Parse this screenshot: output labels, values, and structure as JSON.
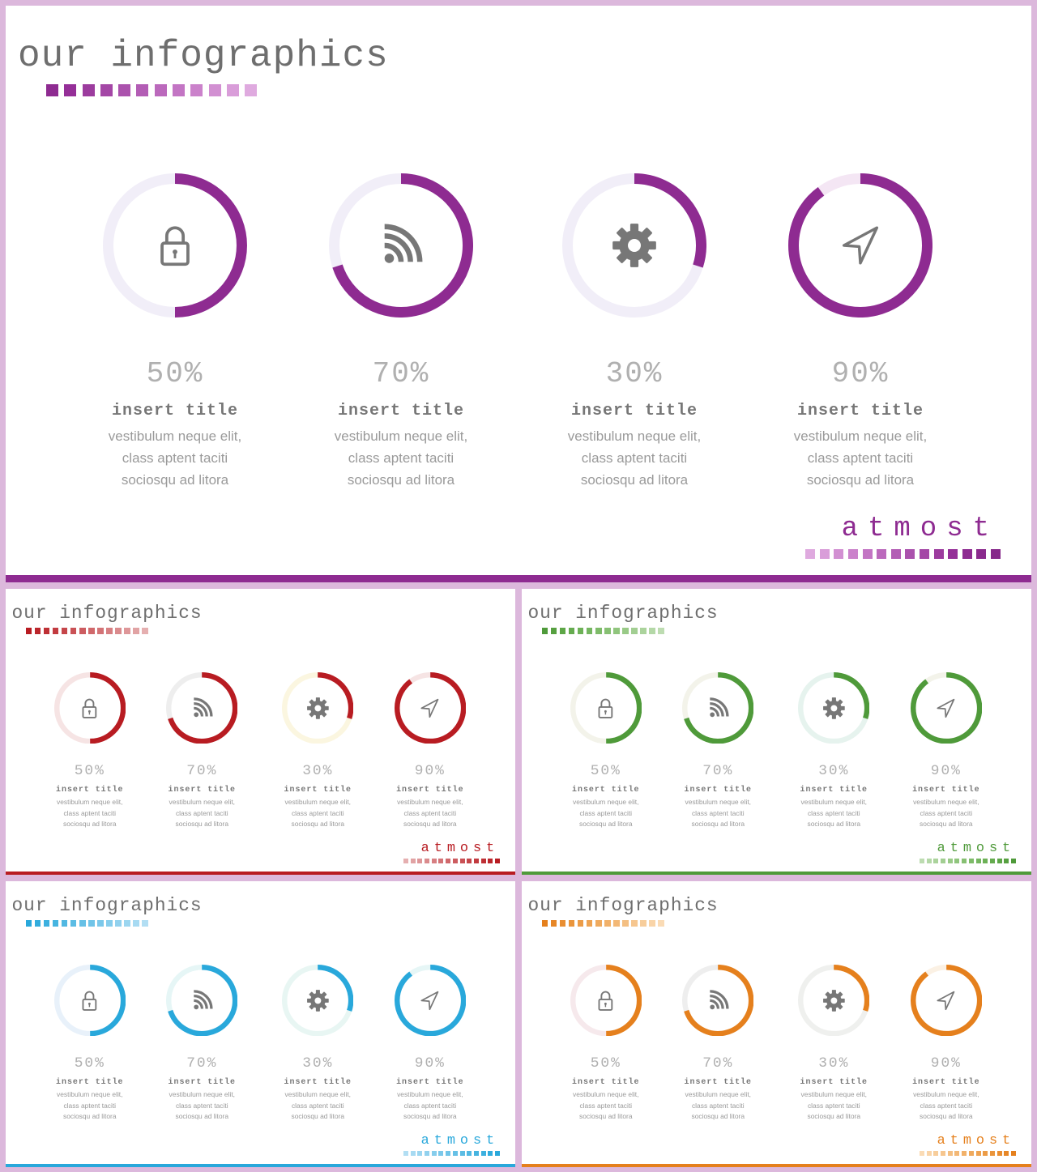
{
  "slides": [
    {
      "theme": "purple",
      "title": "our infographics",
      "brand": "atmost",
      "accent": "#8e2b91",
      "track_colors": [
        "#f1eef8",
        "#f1eef8",
        "#f1eef8",
        "#f4e6f4"
      ],
      "title_squares": [
        "#8e2b91",
        "#952f98",
        "#9c3c9e",
        "#a447a6",
        "#ab52ad",
        "#b35db5",
        "#bb69bc",
        "#c375c4",
        "#cb82cb",
        "#d290d2",
        "#d99dd9",
        "#dfaadf"
      ],
      "brand_squares": [
        "#dfaadf",
        "#d99dd9",
        "#d290d2",
        "#cb82cb",
        "#c375c4",
        "#bb69bc",
        "#b35db5",
        "#ab52ad",
        "#a447a6",
        "#9c3c9e",
        "#952f98",
        "#8e2b91",
        "#8a2a8d",
        "#86288a"
      ],
      "items": [
        {
          "icon": "lock-icon",
          "percent_label": "50%",
          "value": 50,
          "title": "insert title",
          "desc": [
            "vestibulum neque elit,",
            "class aptent taciti",
            "sociosqu ad litora"
          ]
        },
        {
          "icon": "rss-icon",
          "percent_label": "70%",
          "value": 70,
          "title": "insert title",
          "desc": [
            "vestibulum neque elit,",
            "class aptent taciti",
            "sociosqu ad litora"
          ]
        },
        {
          "icon": "gear-icon",
          "percent_label": "30%",
          "value": 30,
          "title": "insert title",
          "desc": [
            "vestibulum neque elit,",
            "class aptent taciti",
            "sociosqu ad litora"
          ]
        },
        {
          "icon": "navigation-arrow-icon",
          "percent_label": "90%",
          "value": 90,
          "title": "insert title",
          "desc": [
            "vestibulum neque elit,",
            "class aptent taciti",
            "sociosqu ad litora"
          ]
        }
      ]
    },
    {
      "theme": "red",
      "title": "our infographics",
      "brand": "atmost",
      "accent": "#b81c22",
      "track_colors": [
        "#f6e4e4",
        "#eeeeee",
        "#fbf6e0",
        "#f6e4e4"
      ],
      "title_squares": [
        "#b81c22",
        "#bb262c",
        "#be3035",
        "#c23b40",
        "#c5464a",
        "#c95155",
        "#cc5c60",
        "#d0686b",
        "#d37376",
        "#d77f82",
        "#da8b8d",
        "#de9799",
        "#e1a3a4",
        "#e5afb0"
      ],
      "brand_squares": [
        "#e5afb0",
        "#e1a3a4",
        "#de9799",
        "#da8b8d",
        "#d77f82",
        "#d37376",
        "#d0686b",
        "#cc5c60",
        "#c95155",
        "#c5464a",
        "#c23b40",
        "#be3035",
        "#bb262c",
        "#b81c22"
      ],
      "items": [
        {
          "icon": "lock-icon",
          "percent_label": "50%",
          "value": 50,
          "title": "insert title",
          "desc": [
            "vestibulum neque elit,",
            "class aptent taciti",
            "sociosqu ad litora"
          ]
        },
        {
          "icon": "rss-icon",
          "percent_label": "70%",
          "value": 70,
          "title": "insert title",
          "desc": [
            "vestibulum neque elit,",
            "class aptent taciti",
            "sociosqu ad litora"
          ]
        },
        {
          "icon": "gear-icon",
          "percent_label": "30%",
          "value": 30,
          "title": "insert title",
          "desc": [
            "vestibulum neque elit,",
            "class aptent taciti",
            "sociosqu ad litora"
          ]
        },
        {
          "icon": "navigation-arrow-icon",
          "percent_label": "90%",
          "value": 90,
          "title": "insert title",
          "desc": [
            "vestibulum neque elit,",
            "class aptent taciti",
            "sociosqu ad litora"
          ]
        }
      ]
    },
    {
      "theme": "green",
      "title": "our infographics",
      "brand": "atmost",
      "accent": "#4f9a3a",
      "track_colors": [
        "#f3f3ea",
        "#f3f3ea",
        "#e6f3ee",
        "#f3f3ea"
      ],
      "title_squares": [
        "#4f9a3a",
        "#56a040",
        "#5da647",
        "#65ab4f",
        "#6db157",
        "#75b660",
        "#7ebb69",
        "#87c073",
        "#90c57d",
        "#99ca87",
        "#a2ce92",
        "#abd39c",
        "#b4d8a7",
        "#bddcb1"
      ],
      "brand_squares": [
        "#bddcb1",
        "#b4d8a7",
        "#abd39c",
        "#a2ce92",
        "#99ca87",
        "#90c57d",
        "#87c073",
        "#7ebb69",
        "#75b660",
        "#6db157",
        "#65ab4f",
        "#5da647",
        "#56a040",
        "#4f9a3a"
      ],
      "items": [
        {
          "icon": "lock-icon",
          "percent_label": "50%",
          "value": 50,
          "title": "insert title",
          "desc": [
            "vestibulum neque elit,",
            "class aptent taciti",
            "sociosqu ad litora"
          ]
        },
        {
          "icon": "rss-icon",
          "percent_label": "70%",
          "value": 70,
          "title": "insert title",
          "desc": [
            "vestibulum neque elit,",
            "class aptent taciti",
            "sociosqu ad litora"
          ]
        },
        {
          "icon": "gear-icon",
          "percent_label": "30%",
          "value": 30,
          "title": "insert title",
          "desc": [
            "vestibulum neque elit,",
            "class aptent taciti",
            "sociosqu ad litora"
          ]
        },
        {
          "icon": "navigation-arrow-icon",
          "percent_label": "90%",
          "value": 90,
          "title": "insert title",
          "desc": [
            "vestibulum neque elit,",
            "class aptent taciti",
            "sociosqu ad litora"
          ]
        }
      ]
    },
    {
      "theme": "blue",
      "title": "our infographics",
      "brand": "atmost",
      "accent": "#29a8db",
      "track_colors": [
        "#e8f1fa",
        "#e6f6f6",
        "#e8f6f3",
        "#e6f6f6"
      ],
      "title_squares": [
        "#29a8db",
        "#32acdd",
        "#3cb0df",
        "#46b4e0",
        "#51b8e2",
        "#5bbce4",
        "#66c0e6",
        "#70c4e8",
        "#7bc8ea",
        "#86cdec",
        "#91d1ee",
        "#9cd6f0",
        "#a7daf2",
        "#b2def3"
      ],
      "brand_squares": [
        "#b2def3",
        "#a7daf2",
        "#9cd6f0",
        "#91d1ee",
        "#86cdec",
        "#7bc8ea",
        "#70c4e8",
        "#66c0e6",
        "#5bbce4",
        "#51b8e2",
        "#46b4e0",
        "#3cb0df",
        "#32acdd",
        "#29a8db"
      ],
      "items": [
        {
          "icon": "lock-icon",
          "percent_label": "50%",
          "value": 50,
          "title": "insert title",
          "desc": [
            "vestibulum neque elit,",
            "class aptent taciti",
            "sociosqu ad litora"
          ]
        },
        {
          "icon": "rss-icon",
          "percent_label": "70%",
          "value": 70,
          "title": "insert title",
          "desc": [
            "vestibulum neque elit,",
            "class aptent taciti",
            "sociosqu ad litora"
          ]
        },
        {
          "icon": "gear-icon",
          "percent_label": "30%",
          "value": 30,
          "title": "insert title",
          "desc": [
            "vestibulum neque elit,",
            "class aptent taciti",
            "sociosqu ad litora"
          ]
        },
        {
          "icon": "navigation-arrow-icon",
          "percent_label": "90%",
          "value": 90,
          "title": "insert title",
          "desc": [
            "vestibulum neque elit,",
            "class aptent taciti",
            "sociosqu ad litora"
          ]
        }
      ]
    },
    {
      "theme": "orange",
      "title": "our infographics",
      "brand": "atmost",
      "accent": "#e5801d",
      "track_colors": [
        "#f6e9ec",
        "#eeeeee",
        "#eff0ee",
        "#fbf1e4"
      ],
      "title_squares": [
        "#e5801d",
        "#e78727",
        "#e98e31",
        "#ea953c",
        "#ec9c47",
        "#eea352",
        "#efaa5e",
        "#f1b16a",
        "#f3b876",
        "#f4bf82",
        "#f6c68f",
        "#f7cd9b",
        "#f9d4a8",
        "#fadbb5"
      ],
      "brand_squares": [
        "#fadbb5",
        "#f9d4a8",
        "#f7cd9b",
        "#f6c68f",
        "#f4bf82",
        "#f3b876",
        "#f1b16a",
        "#efaa5e",
        "#eea352",
        "#ec9c47",
        "#ea953c",
        "#e98e31",
        "#e78727",
        "#e5801d"
      ],
      "items": [
        {
          "icon": "lock-icon",
          "percent_label": "50%",
          "value": 50,
          "title": "insert title",
          "desc": [
            "vestibulum neque elit,",
            "class aptent taciti",
            "sociosqu ad litora"
          ]
        },
        {
          "icon": "rss-icon",
          "percent_label": "70%",
          "value": 70,
          "title": "insert title",
          "desc": [
            "vestibulum neque elit,",
            "class aptent taciti",
            "sociosqu ad litora"
          ]
        },
        {
          "icon": "gear-icon",
          "percent_label": "30%",
          "value": 30,
          "title": "insert title",
          "desc": [
            "vestibulum neque elit,",
            "class aptent taciti",
            "sociosqu ad litora"
          ]
        },
        {
          "icon": "navigation-arrow-icon",
          "percent_label": "90%",
          "value": 90,
          "title": "insert title",
          "desc": [
            "vestibulum neque elit,",
            "class aptent taciti",
            "sociosqu ad litora"
          ]
        }
      ]
    }
  ]
}
